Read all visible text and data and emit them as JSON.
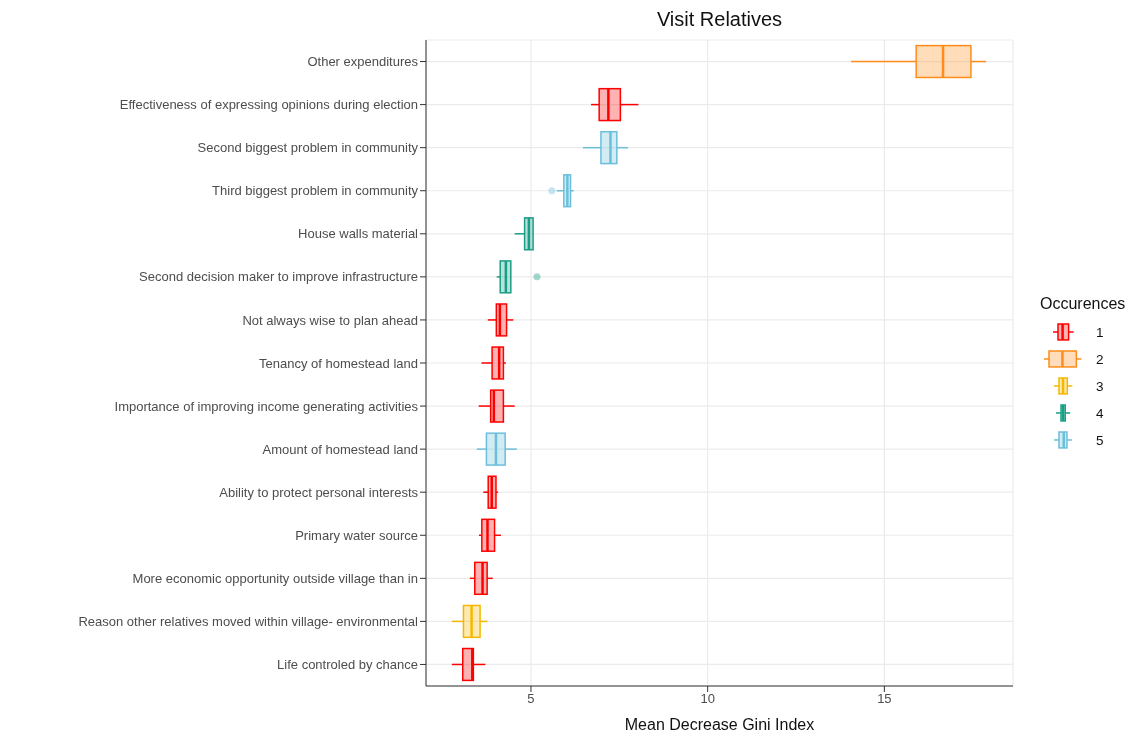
{
  "chart_data": {
    "type": "box",
    "orientation": "horizontal",
    "title": "Visit Relatives",
    "xlabel": "Mean Decrease Gini Index",
    "legend_title": "Occurences",
    "legend": "right",
    "grid": true,
    "categories": [
      "Other expenditures",
      "Effectiveness of expressing opinions during election",
      "Second biggest problem in community",
      "Third biggest problem in community",
      "House walls material",
      "Second decision maker to improve infrastructure",
      "Not always wise to plan ahead",
      "Tenancy of homestead land",
      "Importance of improving income generating activities",
      "Amount of homestead land",
      "Ability to protect personal interests",
      "Primary water source",
      "More economic opportunity outside village than in",
      "Reason other relatives moved within village- environmental",
      "Life controled by chance"
    ],
    "xlim": [
      2.03,
      18.64
    ],
    "xticks": [
      5,
      10,
      15
    ],
    "series": [
      {
        "name": "1",
        "color": "#ff0000",
        "boxes": [
          null,
          {
            "low": 6.7,
            "q1": 6.93,
            "median": 7.19,
            "q3": 7.53,
            "high": 8.04
          },
          null,
          null,
          null,
          null,
          {
            "low": 3.78,
            "q1": 4.02,
            "median": 4.12,
            "q3": 4.31,
            "high": 4.5
          },
          {
            "low": 3.6,
            "q1": 3.9,
            "median": 4.1,
            "q3": 4.22,
            "high": 4.29
          },
          {
            "low": 3.52,
            "q1": 3.86,
            "median": 3.95,
            "q3": 4.22,
            "high": 4.54
          },
          null,
          {
            "low": 3.65,
            "q1": 3.79,
            "median": 3.89,
            "q3": 4.01,
            "high": 4.07
          },
          {
            "low": 3.53,
            "q1": 3.61,
            "median": 3.77,
            "q3": 3.97,
            "high": 4.15
          },
          {
            "low": 3.27,
            "q1": 3.41,
            "median": 3.63,
            "q3": 3.76,
            "high": 3.92
          },
          null,
          {
            "low": 2.76,
            "q1": 3.07,
            "median": 3.34,
            "q3": 3.37,
            "high": 3.71
          }
        ]
      },
      {
        "name": "2",
        "color": "#ff8c1a",
        "boxes": [
          {
            "low": 14.06,
            "q1": 15.9,
            "median": 16.66,
            "q3": 17.45,
            "high": 17.88
          },
          null,
          null,
          null,
          null,
          null,
          null,
          null,
          null,
          null,
          null,
          null,
          null,
          null,
          null
        ]
      },
      {
        "name": "3",
        "color": "#f5b800",
        "boxes": [
          null,
          null,
          null,
          null,
          null,
          null,
          null,
          null,
          null,
          null,
          null,
          null,
          null,
          {
            "low": 2.76,
            "q1": 3.09,
            "median": 3.32,
            "q3": 3.56,
            "high": 3.77
          },
          null
        ]
      },
      {
        "name": "4",
        "color": "#1a9e86",
        "boxes": [
          null,
          null,
          null,
          null,
          {
            "low": 4.54,
            "q1": 4.82,
            "median": 4.94,
            "q3": 5.06,
            "high": 5.06
          },
          {
            "low": 4.03,
            "q1": 4.13,
            "median": 4.29,
            "q3": 4.43,
            "high": 4.43,
            "outliers": [
              5.17
            ]
          },
          null,
          null,
          null,
          null,
          null,
          null,
          null,
          null,
          null
        ]
      },
      {
        "name": "5",
        "color": "#6bbfdb",
        "boxes": [
          null,
          null,
          {
            "low": 6.47,
            "q1": 6.98,
            "median": 7.25,
            "q3": 7.43,
            "high": 7.75
          },
          {
            "low": 5.73,
            "q1": 5.93,
            "median": 6.03,
            "q3": 6.12,
            "high": 6.21,
            "outliers": [
              5.59
            ]
          },
          null,
          null,
          null,
          null,
          null,
          {
            "low": 3.47,
            "q1": 3.74,
            "median": 4.01,
            "q3": 4.27,
            "high": 4.6
          },
          null,
          null,
          null,
          null,
          null
        ]
      }
    ]
  }
}
